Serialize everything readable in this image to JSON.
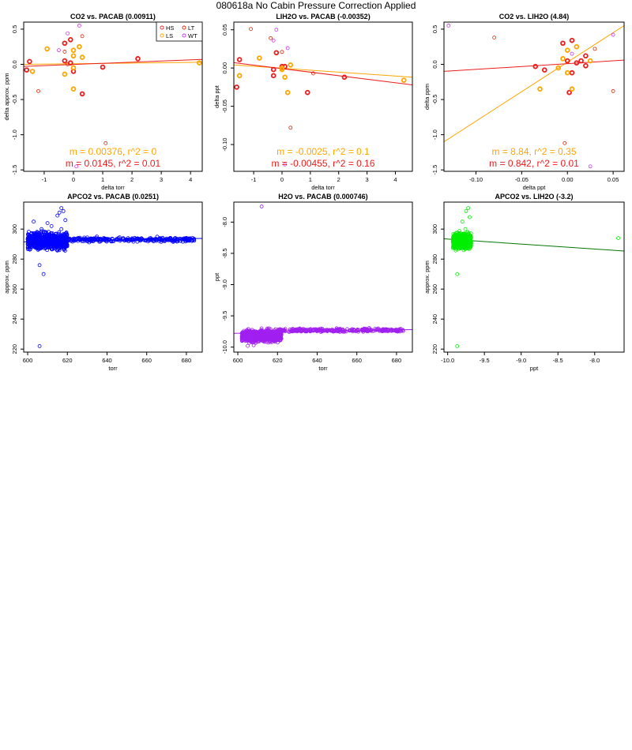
{
  "page_title": "080618a   No Cabin Pressure Correction Applied",
  "colors": {
    "HS": "#ee1c1c",
    "LS": "#ffa500",
    "LT": "#dd2200",
    "WT": "#cc33ee",
    "blue": "#0000ff",
    "purple": "#a020f0",
    "green": "#00ee00",
    "green_line": "#007700",
    "LS_line": "#ffa500",
    "HS_line": "#ee1c1c"
  },
  "chart_data": [
    {
      "type": "scatter",
      "title": "CO2 vs. PACAB (0.00911)",
      "xlabel": "delta torr",
      "ylabel": "delta approx. ppm",
      "xlim": [
        -1.7,
        4.4
      ],
      "ylim": [
        -1.52,
        0.6
      ],
      "xticks": [
        -1,
        0,
        1,
        2,
        3,
        4
      ],
      "yticks": [
        0.5,
        0.0,
        -0.5,
        -1.0,
        -1.5
      ],
      "ytick_labels": [
        "0.5",
        "0.0",
        "-0.5",
        "-1.0",
        "-1.5"
      ],
      "legend": {
        "position": "top-right",
        "entries": [
          {
            "label": "HS",
            "color": "#ee1c1c"
          },
          {
            "label": "LT",
            "color": "#dd2200"
          },
          {
            "label": "LS",
            "color": "#ffa500"
          },
          {
            "label": "WT",
            "color": "#cc33ee"
          }
        ]
      },
      "annotations": [
        {
          "text": "m = 0.00376, r^2 = 0",
          "color": "#ffa500"
        },
        {
          "text": "m = 0.0145, r^2 = 0.01",
          "color": "#ee1c1c"
        }
      ],
      "fits": [
        {
          "color": "#ffa500",
          "x": [
            -1.7,
            4.4
          ],
          "y": [
            0.0,
            0.03
          ]
        },
        {
          "color": "#ee1c1c",
          "x": [
            -1.7,
            4.4
          ],
          "y": [
            -0.03,
            0.07
          ]
        }
      ],
      "series": [
        {
          "name": "HS",
          "color": "#ee1c1c",
          "bold": true,
          "points": [
            [
              -1.5,
              0.04
            ],
            [
              -1.6,
              -0.08
            ],
            [
              -0.3,
              0.3
            ],
            [
              -0.1,
              0.35
            ],
            [
              -0.3,
              0.05
            ],
            [
              -0.1,
              0.02
            ],
            [
              0.0,
              -0.1
            ],
            [
              0.3,
              -0.42
            ],
            [
              1.0,
              -0.04
            ],
            [
              2.2,
              0.08
            ]
          ]
        },
        {
          "name": "LS",
          "color": "#ffa500",
          "bold": true,
          "points": [
            [
              -1.4,
              -0.1
            ],
            [
              -0.9,
              0.22
            ],
            [
              -0.3,
              -0.14
            ],
            [
              0.0,
              0.2
            ],
            [
              0.0,
              0.12
            ],
            [
              0.0,
              -0.35
            ],
            [
              0.2,
              0.25
            ],
            [
              0.0,
              -0.05
            ],
            [
              4.3,
              0.02
            ],
            [
              0.3,
              0.1
            ]
          ]
        },
        {
          "name": "LT",
          "color": "#dd2200",
          "bold": false,
          "points": [
            [
              -1.2,
              -0.38
            ],
            [
              -0.3,
              0.18
            ],
            [
              0.3,
              0.4
            ],
            [
              1.1,
              -1.12
            ],
            [
              -0.2,
              0.0
            ]
          ]
        },
        {
          "name": "WT",
          "color": "#cc33ee",
          "bold": false,
          "points": [
            [
              0.2,
              0.55
            ],
            [
              -0.2,
              0.44
            ],
            [
              0.1,
              -1.45
            ],
            [
              -0.5,
              0.2
            ]
          ]
        }
      ]
    },
    {
      "type": "scatter",
      "title": "LIH2O vs. PACAB (-0.00352)",
      "xlabel": "delta torr",
      "ylabel": "delta ppt",
      "xlim": [
        -1.7,
        4.6
      ],
      "ylim": [
        -0.135,
        0.06
      ],
      "xticks": [
        -1,
        0,
        1,
        2,
        3,
        4
      ],
      "yticks": [
        0.05,
        0.0,
        -0.05,
        -0.1
      ],
      "ytick_labels": [
        "0.05",
        "0.00",
        "-0.05",
        "-0.10"
      ],
      "annotations": [
        {
          "text": "m = -0.0025, r^2 = 0.1",
          "color": "#ffa500"
        },
        {
          "text": "m = -0.00455, r^2 = 0.16",
          "color": "#ee1c1c"
        }
      ],
      "fits": [
        {
          "color": "#ffa500",
          "x": [
            -1.7,
            4.6
          ],
          "y": [
            0.004,
            -0.012
          ]
        },
        {
          "color": "#ee1c1c",
          "x": [
            -1.7,
            4.6
          ],
          "y": [
            0.007,
            -0.022
          ]
        }
      ],
      "series": [
        {
          "name": "HS",
          "color": "#ee1c1c",
          "bold": true,
          "points": [
            [
              -1.6,
              -0.025
            ],
            [
              -1.5,
              0.011
            ],
            [
              0.0,
              0.002
            ],
            [
              -0.3,
              -0.01
            ],
            [
              0.1,
              0.002
            ],
            [
              -0.2,
              0.02
            ],
            [
              0.9,
              -0.032
            ],
            [
              2.2,
              -0.012
            ],
            [
              -0.3,
              -0.002
            ]
          ]
        },
        {
          "name": "LS",
          "color": "#ffa500",
          "bold": true,
          "points": [
            [
              -1.5,
              -0.01
            ],
            [
              -0.8,
              0.013
            ],
            [
              0.0,
              -0.002
            ],
            [
              0.1,
              -0.012
            ],
            [
              0.3,
              0.004
            ],
            [
              0.2,
              -0.032
            ],
            [
              4.3,
              -0.016
            ],
            [
              0.0,
              0.0
            ]
          ]
        },
        {
          "name": "LT",
          "color": "#dd2200",
          "bold": false,
          "points": [
            [
              -1.1,
              0.051
            ],
            [
              -0.4,
              0.039
            ],
            [
              0.0,
              0.021
            ],
            [
              1.1,
              -0.007
            ],
            [
              0.3,
              -0.078
            ]
          ]
        },
        {
          "name": "WT",
          "color": "#cc33ee",
          "bold": false,
          "points": [
            [
              -0.2,
              0.05
            ],
            [
              0.2,
              0.026
            ],
            [
              0.1,
              -0.126
            ],
            [
              -0.3,
              0.036
            ]
          ]
        }
      ]
    },
    {
      "type": "scatter",
      "title": "CO2 vs. LIH2O (4.84)",
      "xlabel": "delta ppt",
      "ylabel": "delta ppm",
      "xlim": [
        -0.135,
        0.062
      ],
      "ylim": [
        -1.52,
        0.6
      ],
      "xticks": [
        -0.1,
        -0.05,
        0.0,
        0.05
      ],
      "xtick_labels": [
        "-0.10",
        "-0.05",
        "0.00",
        "0.05"
      ],
      "yticks": [
        0.5,
        0.0,
        -0.5,
        -1.0,
        -1.5
      ],
      "ytick_labels": [
        "0.5",
        "0.0",
        "-0.5",
        "-1.0",
        "-1.5"
      ],
      "annotations": [
        {
          "text": "m = 8.84, r^2 = 0.35",
          "color": "#ffa500"
        },
        {
          "text": "m = 0.842, r^2 = 0.01",
          "color": "#ee1c1c"
        }
      ],
      "fits": [
        {
          "color": "#ffa500",
          "x": [
            -0.135,
            0.062
          ],
          "y": [
            -1.1,
            0.55
          ]
        },
        {
          "color": "#ee1c1c",
          "x": [
            -0.135,
            0.062
          ],
          "y": [
            -0.1,
            0.06
          ]
        }
      ],
      "series": [
        {
          "name": "HS",
          "color": "#ee1c1c",
          "bold": true,
          "points": [
            [
              -0.005,
              0.3
            ],
            [
              0.005,
              0.34
            ],
            [
              -0.025,
              -0.08
            ],
            [
              -0.035,
              -0.03
            ],
            [
              0.0,
              0.05
            ],
            [
              0.005,
              -0.12
            ],
            [
              0.01,
              0.02
            ],
            [
              0.02,
              0.12
            ],
            [
              0.015,
              0.05
            ],
            [
              0.02,
              -0.02
            ],
            [
              0.002,
              -0.4
            ]
          ]
        },
        {
          "name": "LS",
          "color": "#ffa500",
          "bold": true,
          "points": [
            [
              -0.03,
              -0.35
            ],
            [
              -0.01,
              -0.05
            ],
            [
              0.0,
              0.2
            ],
            [
              0.005,
              -0.35
            ],
            [
              0.01,
              0.25
            ],
            [
              0.025,
              0.05
            ],
            [
              -0.005,
              0.08
            ],
            [
              0.0,
              -0.12
            ]
          ]
        },
        {
          "name": "LT",
          "color": "#dd2200",
          "bold": false,
          "points": [
            [
              -0.08,
              0.38
            ],
            [
              0.03,
              0.22
            ],
            [
              0.05,
              -0.38
            ],
            [
              -0.003,
              -1.12
            ]
          ]
        },
        {
          "name": "WT",
          "color": "#cc33ee",
          "bold": false,
          "points": [
            [
              -0.13,
              0.55
            ],
            [
              0.05,
              0.42
            ],
            [
              0.025,
              -1.45
            ],
            [
              0.005,
              0.15
            ]
          ]
        }
      ]
    },
    {
      "type": "scatter",
      "title": "APCO2 vs. PACAB (0.0251)",
      "xlabel": "torr",
      "ylabel": "approx. ppm",
      "xlim": [
        598,
        688
      ],
      "ylim": [
        218,
        318
      ],
      "xticks": [
        600,
        620,
        640,
        660,
        680
      ],
      "yticks": [
        300,
        280,
        260,
        240,
        220
      ],
      "fits": [
        {
          "color": "#0000ff",
          "x": [
            598,
            688
          ],
          "y": [
            291.5,
            293.8
          ]
        }
      ],
      "series": [
        {
          "name": "APCO2",
          "color": "#0000ff",
          "bold": false,
          "cluster": {
            "xmin": 600,
            "xmax": 620,
            "ymean": 292,
            "spread": 5,
            "count": 900
          },
          "band": {
            "xmin": 615,
            "xmax": 684,
            "ymean": 293,
            "spread": 1.4,
            "count": 320
          },
          "points": [
            [
              606,
              222
            ],
            [
              608,
              270
            ],
            [
              612,
              302
            ],
            [
              616,
              311
            ],
            [
              617,
              314
            ],
            [
              618,
              312
            ],
            [
              610,
              304
            ],
            [
              603,
              305
            ],
            [
              617,
              300
            ],
            [
              615,
              309
            ],
            [
              606,
              276
            ],
            [
              607,
              300
            ],
            [
              619,
              306
            ],
            [
              616,
              286
            ],
            [
              618,
              296
            ]
          ]
        }
      ]
    },
    {
      "type": "scatter",
      "title": "H2O vs. PACAB (0.000746)",
      "xlabel": "torr",
      "ylabel": "ppt",
      "xlim": [
        598,
        688
      ],
      "ylim": [
        -10.08,
        -7.68
      ],
      "xticks": [
        600,
        620,
        640,
        660,
        680
      ],
      "yticks": [
        -8.0,
        -8.5,
        -9.0,
        -9.5,
        -10.0
      ],
      "ytick_labels": [
        "-8.0",
        "-8.5",
        "-9.0",
        "-9.5",
        "-10.0"
      ],
      "fits": [
        {
          "color": "#a020f0",
          "x": [
            598,
            688
          ],
          "y": [
            -9.78,
            -9.72
          ]
        }
      ],
      "series": [
        {
          "name": "H2O",
          "color": "#a020f0",
          "bold": false,
          "cluster": {
            "xmin": 602,
            "xmax": 622,
            "ymean": -9.82,
            "spread": 0.085,
            "count": 900
          },
          "band": {
            "xmin": 620,
            "xmax": 684,
            "ymean": -9.73,
            "spread": 0.025,
            "count": 320
          },
          "points": [
            [
              612,
              -7.75
            ],
            [
              605,
              -9.98
            ],
            [
              608,
              -9.97
            ]
          ]
        }
      ]
    },
    {
      "type": "scatter",
      "title": "APCO2 vs. LIH2O (-3.2)",
      "xlabel": "ppt",
      "ylabel": "approx. ppm",
      "xlim": [
        -10.05,
        -7.6
      ],
      "ylim": [
        218,
        318
      ],
      "xticks": [
        -10.0,
        -9.5,
        -9.0,
        -8.5,
        -8.0
      ],
      "xtick_labels": [
        "-10.0",
        "-9.5",
        "-9.0",
        "-8.5",
        "-8.0"
      ],
      "yticks": [
        300,
        280,
        260,
        240,
        220
      ],
      "fits": [
        {
          "color": "#007700",
          "x": [
            -10.05,
            -7.6
          ],
          "y": [
            293.5,
            285.4
          ]
        }
      ],
      "series": [
        {
          "name": "APCO2 vs LIH2O",
          "color": "#00ee00",
          "bold": false,
          "cluster": {
            "xmin": -9.93,
            "xmax": -9.68,
            "ymean": 292,
            "spread": 4.5,
            "count": 900
          },
          "points": [
            [
              -9.87,
              222
            ],
            [
              -9.87,
              270
            ],
            [
              -9.72,
              314
            ],
            [
              -9.75,
              312
            ],
            [
              -7.68,
              294
            ],
            [
              -9.8,
              305
            ],
            [
              -9.76,
              300
            ],
            [
              -9.7,
              308
            ]
          ]
        }
      ]
    }
  ]
}
